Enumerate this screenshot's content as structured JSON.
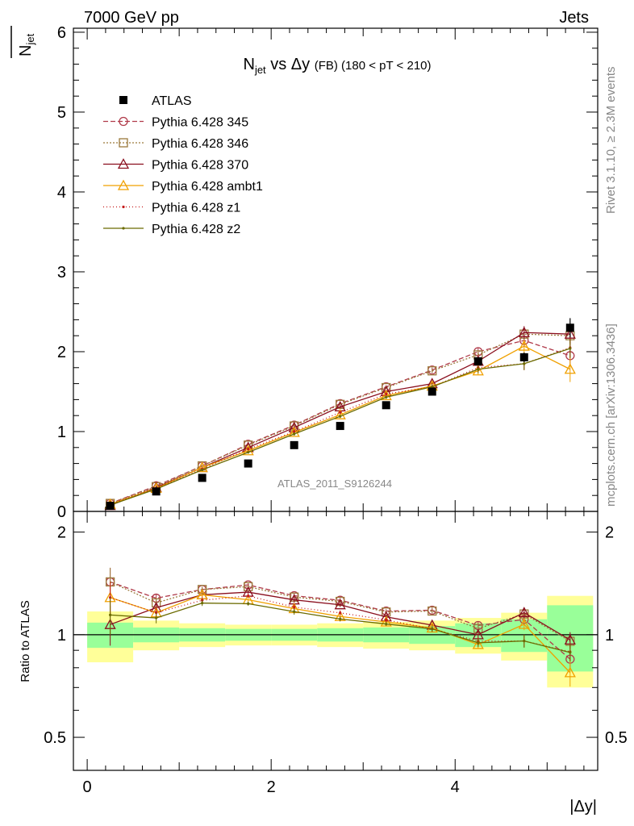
{
  "header": {
    "left": "7000 GeV pp",
    "right": "Jets"
  },
  "side_labels": {
    "rivet": "Rivet 3.1.10, ≥ 2.3M events",
    "mcplots": "mcplots.cern.ch [arXiv:1306.3436]"
  },
  "chart_data": {
    "type": "line",
    "title": "N_jet vs Δy (FB) (180 < pT < 210)",
    "title_parts": {
      "main": "N",
      "sub": "jet",
      "mid": " vs Δy ",
      "small": "(FB)",
      "tail": " (180 < pT < 210)"
    },
    "watermark": "ATLAS_2011_S9126244",
    "xlabel": "|Δy|",
    "ylabel_main": {
      "num": "N",
      "sub": "jet"
    },
    "ylabel_ratio": "Ratio to ATLAS",
    "xlim": [
      -0.15,
      5.55
    ],
    "ylim_main": [
      0,
      6.05
    ],
    "ylim_ratio": [
      0.4,
      2.3
    ],
    "ratio_log_scale": true,
    "x_ticks": [
      "0",
      "2",
      "4"
    ],
    "y_ticks_main": [
      "0",
      "1",
      "2",
      "3",
      "4",
      "5",
      "6"
    ],
    "y_ticks_ratio": [
      "0.5",
      "1",
      "2"
    ],
    "legend_position": "top-left",
    "x": [
      0.25,
      0.75,
      1.25,
      1.75,
      2.25,
      2.75,
      3.25,
      3.75,
      4.25,
      4.75,
      5.25
    ],
    "data": {
      "name": "ATLAS",
      "values": [
        0.07,
        0.25,
        0.42,
        0.6,
        0.83,
        1.07,
        1.33,
        1.5,
        1.88,
        1.93,
        2.3
      ],
      "errors": [
        0.01,
        0.01,
        0.01,
        0.01,
        0.01,
        0.01,
        0.02,
        0.03,
        0.04,
        0.06,
        0.12
      ],
      "band_inner": [
        0.085,
        0.05,
        0.045,
        0.04,
        0.04,
        0.045,
        0.05,
        0.06,
        0.08,
        0.11,
        0.22
      ],
      "band_outer": [
        0.17,
        0.1,
        0.08,
        0.07,
        0.07,
        0.08,
        0.09,
        0.1,
        0.12,
        0.16,
        0.3
      ]
    },
    "series": [
      {
        "name": "Pythia 6.428 345",
        "color": "#b03a4a",
        "dash": "6,3",
        "marker": "circle",
        "values": [
          0.1,
          0.32,
          0.57,
          0.84,
          1.08,
          1.35,
          1.56,
          1.77,
          2.0,
          2.14,
          1.95
        ],
        "errors": [
          0.01,
          0.01,
          0.01,
          0.01,
          0.02,
          0.02,
          0.02,
          0.03,
          0.05,
          0.08,
          0.12
        ]
      },
      {
        "name": "Pythia 6.428 346",
        "color": "#9c7a3c",
        "dash": "2,2",
        "marker": "square",
        "values": [
          0.1,
          0.31,
          0.57,
          0.83,
          1.07,
          1.34,
          1.55,
          1.76,
          1.96,
          2.22,
          2.2
        ],
        "errors": [
          0.01,
          0.01,
          0.01,
          0.01,
          0.02,
          0.02,
          0.02,
          0.03,
          0.05,
          0.08,
          0.12
        ]
      },
      {
        "name": "Pythia 6.428 370",
        "color": "#8a0f1e",
        "dash": "",
        "marker": "triangle",
        "values": [
          0.075,
          0.3,
          0.55,
          0.8,
          1.05,
          1.31,
          1.5,
          1.6,
          1.88,
          2.24,
          2.22
        ],
        "errors": [
          0.01,
          0.01,
          0.01,
          0.01,
          0.02,
          0.02,
          0.02,
          0.03,
          0.05,
          0.08,
          0.12
        ]
      },
      {
        "name": "Pythia 6.428 ambt1",
        "color": "#f0a000",
        "dash": "",
        "marker": "triangle",
        "values": [
          0.09,
          0.29,
          0.55,
          0.76,
          0.99,
          1.21,
          1.45,
          1.57,
          1.76,
          2.07,
          1.78
        ],
        "errors": [
          0.01,
          0.01,
          0.01,
          0.01,
          0.02,
          0.02,
          0.02,
          0.03,
          0.05,
          0.08,
          0.16
        ]
      },
      {
        "name": "Pythia 6.428 z1",
        "color": "#c41a1a",
        "dash": "1,3",
        "marker": "dot",
        "values": [
          0.09,
          0.29,
          0.53,
          0.78,
          1.0,
          1.24,
          1.47,
          1.56,
          1.8,
          1.85,
          2.05
        ],
        "errors": [
          0.01,
          0.01,
          0.01,
          0.01,
          0.02,
          0.02,
          0.02,
          0.03,
          0.05,
          0.08,
          0.12
        ]
      },
      {
        "name": "Pythia 6.428 z2",
        "color": "#6b6b00",
        "dash": "",
        "marker": "dot",
        "values": [
          0.08,
          0.28,
          0.52,
          0.74,
          0.97,
          1.19,
          1.43,
          1.56,
          1.78,
          1.85,
          2.04
        ],
        "errors": [
          0.01,
          0.01,
          0.01,
          0.01,
          0.02,
          0.02,
          0.02,
          0.03,
          0.05,
          0.08,
          0.12
        ]
      }
    ]
  }
}
